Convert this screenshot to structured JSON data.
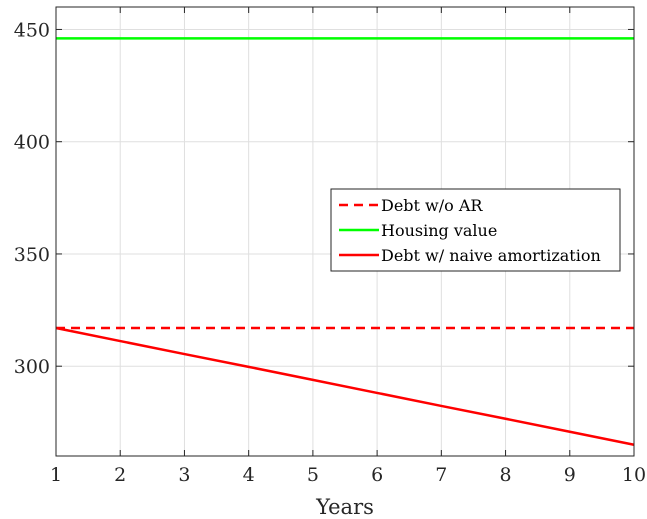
{
  "chart_data": {
    "type": "line",
    "title": "",
    "xlabel": "Years",
    "ylabel": "",
    "xlim": [
      1,
      10
    ],
    "ylim": [
      260,
      460
    ],
    "xticks": [
      1,
      2,
      3,
      4,
      5,
      6,
      7,
      8,
      9,
      10
    ],
    "yticks": [
      300,
      350,
      400,
      450
    ],
    "grid": true,
    "legend_position": "center-right",
    "x": [
      1,
      2,
      3,
      4,
      5,
      6,
      7,
      8,
      9,
      10
    ],
    "series": [
      {
        "name": "Debt w/o AR",
        "color": "#ff0000",
        "style": "dashed",
        "values": [
          317,
          317,
          317,
          317,
          317,
          317,
          317,
          317,
          317,
          317
        ]
      },
      {
        "name": "Housing value",
        "color": "#00ff00",
        "style": "solid",
        "values": [
          446,
          446,
          446,
          446,
          446,
          446,
          446,
          446,
          446,
          446
        ]
      },
      {
        "name": "Debt w/ naive amortization",
        "color": "#ff0000",
        "style": "solid",
        "values": [
          317,
          311.2,
          305.4,
          299.7,
          293.9,
          288.1,
          282.3,
          276.6,
          270.8,
          265
        ]
      }
    ]
  }
}
